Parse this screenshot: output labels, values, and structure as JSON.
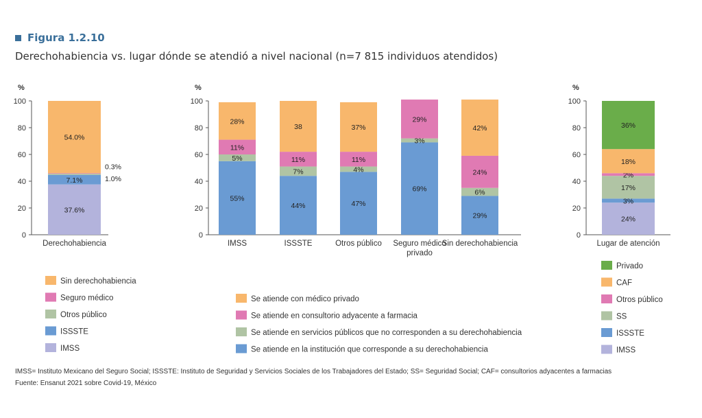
{
  "figure": {
    "label": "Figura 1.2.10",
    "title": "Derechohabiencia vs. lugar dónde se atendió a nivel nacional (n=7 815 individuos atendidos)"
  },
  "colors": {
    "imss": "#b3b3dc",
    "issste": "#6a9bd3",
    "otros": "#b0c4a4",
    "seguro": "#e07ab3",
    "sinder": "#f8b76c",
    "privado": "#6aad4a",
    "axis": "#555555"
  },
  "chart_data": [
    {
      "type": "bar",
      "stacked": true,
      "ylabel": "%",
      "ylim": [
        0,
        100
      ],
      "yticks": [
        0,
        20,
        40,
        60,
        80,
        100
      ],
      "categories": [
        "Derechohabiencia"
      ],
      "series": [
        {
          "name": "IMSS",
          "color_key": "imss",
          "values": [
            37.6
          ],
          "labels": [
            "37.6%"
          ]
        },
        {
          "name": "ISSSTE",
          "color_key": "issste",
          "values": [
            7.1
          ],
          "labels": [
            "7.1%"
          ]
        },
        {
          "name": "Otros público",
          "color_key": "otros",
          "values": [
            1.0
          ],
          "labels": [
            "1.0%"
          ]
        },
        {
          "name": "Seguro médico",
          "color_key": "seguro",
          "values": [
            0.3
          ],
          "labels": [
            "0.3%"
          ]
        },
        {
          "name": "Sin derechohabiencia",
          "color_key": "sinder",
          "values": [
            54.0
          ],
          "labels": [
            "54.0%"
          ]
        }
      ],
      "legend": [
        {
          "label": "Sin derechohabiencia",
          "color_key": "sinder"
        },
        {
          "label": "Seguro médico",
          "color_key": "seguro"
        },
        {
          "label": "Otros público",
          "color_key": "otros"
        },
        {
          "label": "ISSSTE",
          "color_key": "issste"
        },
        {
          "label": "IMSS",
          "color_key": "imss"
        }
      ]
    },
    {
      "type": "bar",
      "stacked": true,
      "ylabel": "%",
      "ylim": [
        0,
        100
      ],
      "yticks": [
        0,
        20,
        40,
        60,
        80,
        100
      ],
      "categories": [
        "IMSS",
        "ISSSTE",
        "Otros público",
        "Seguro médico privado",
        "Sin derechohabiencia"
      ],
      "category_lines": [
        [
          "IMSS"
        ],
        [
          "ISSSTE"
        ],
        [
          "Otros público"
        ],
        [
          "Seguro médico",
          "privado"
        ],
        [
          "Sin derechohabiencia"
        ]
      ],
      "series": [
        {
          "name": "Se atiende en la institución que corresponde a su derechohabiencia",
          "color_key": "issste",
          "values": [
            55,
            44,
            47,
            69,
            29
          ],
          "labels": [
            "55%",
            "44%",
            "47%",
            "69%",
            "29%"
          ]
        },
        {
          "name": "Se atiende en servicios públicos que no corresponden a su derechohabiencia",
          "color_key": "otros",
          "values": [
            5,
            7,
            4,
            3,
            6
          ],
          "labels": [
            "5%",
            "7%",
            "4%",
            "3%",
            "6%"
          ]
        },
        {
          "name": "Se atiende en consultorio adyacente a farmacia",
          "color_key": "seguro",
          "values": [
            11,
            11,
            11,
            29,
            24
          ],
          "labels": [
            "11%",
            "11%",
            "11%",
            "29%",
            "24%"
          ]
        },
        {
          "name": "Se atiende con médico privado",
          "color_key": "sinder",
          "values": [
            28,
            38,
            37,
            0,
            42
          ],
          "labels": [
            "28%",
            "38",
            "37%",
            "",
            "42%"
          ]
        }
      ],
      "legend": [
        {
          "label": "Se atiende con médico privado",
          "color_key": "sinder"
        },
        {
          "label": "Se atiende en consultorio adyacente a farmacia",
          "color_key": "seguro"
        },
        {
          "label": "Se atiende en servicios públicos que no corresponden a su derechohabiencia",
          "color_key": "otros"
        },
        {
          "label": "Se atiende en la institución que corresponde a su derechohabiencia",
          "color_key": "issste"
        }
      ]
    },
    {
      "type": "bar",
      "stacked": true,
      "ylabel": "%",
      "ylim": [
        0,
        100
      ],
      "yticks": [
        0,
        20,
        40,
        60,
        80,
        100
      ],
      "categories": [
        "Lugar de atención"
      ],
      "series": [
        {
          "name": "IMSS",
          "color_key": "imss",
          "values": [
            24
          ],
          "labels": [
            "24%"
          ]
        },
        {
          "name": "ISSSTE",
          "color_key": "issste",
          "values": [
            3
          ],
          "labels": [
            "3%"
          ]
        },
        {
          "name": "SS",
          "color_key": "otros",
          "values": [
            17
          ],
          "labels": [
            "17%"
          ]
        },
        {
          "name": "Otros público",
          "color_key": "seguro",
          "values": [
            2
          ],
          "labels": [
            "2%"
          ]
        },
        {
          "name": "CAF",
          "color_key": "sinder",
          "values": [
            18
          ],
          "labels": [
            "18%"
          ]
        },
        {
          "name": "Privado",
          "color_key": "privado",
          "values": [
            36
          ],
          "labels": [
            "36%"
          ]
        }
      ],
      "legend": [
        {
          "label": "Privado",
          "color_key": "privado"
        },
        {
          "label": "CAF",
          "color_key": "sinder"
        },
        {
          "label": "Otros público",
          "color_key": "seguro"
        },
        {
          "label": "SS",
          "color_key": "otros"
        },
        {
          "label": "ISSSTE",
          "color_key": "issste"
        },
        {
          "label": "IMSS",
          "color_key": "imss"
        }
      ]
    }
  ],
  "notes": {
    "abbreviations": "IMSS= Instituto Mexicano del Seguro Social; ISSSTE: Instituto de Seguridad y Servicios Sociales de los Trabajadores del Estado; SS= Seguridad Social; CAF= consultorios adyacentes a farmacias",
    "source": "Fuente: Ensanut 2021 sobre Covid-19, México"
  }
}
